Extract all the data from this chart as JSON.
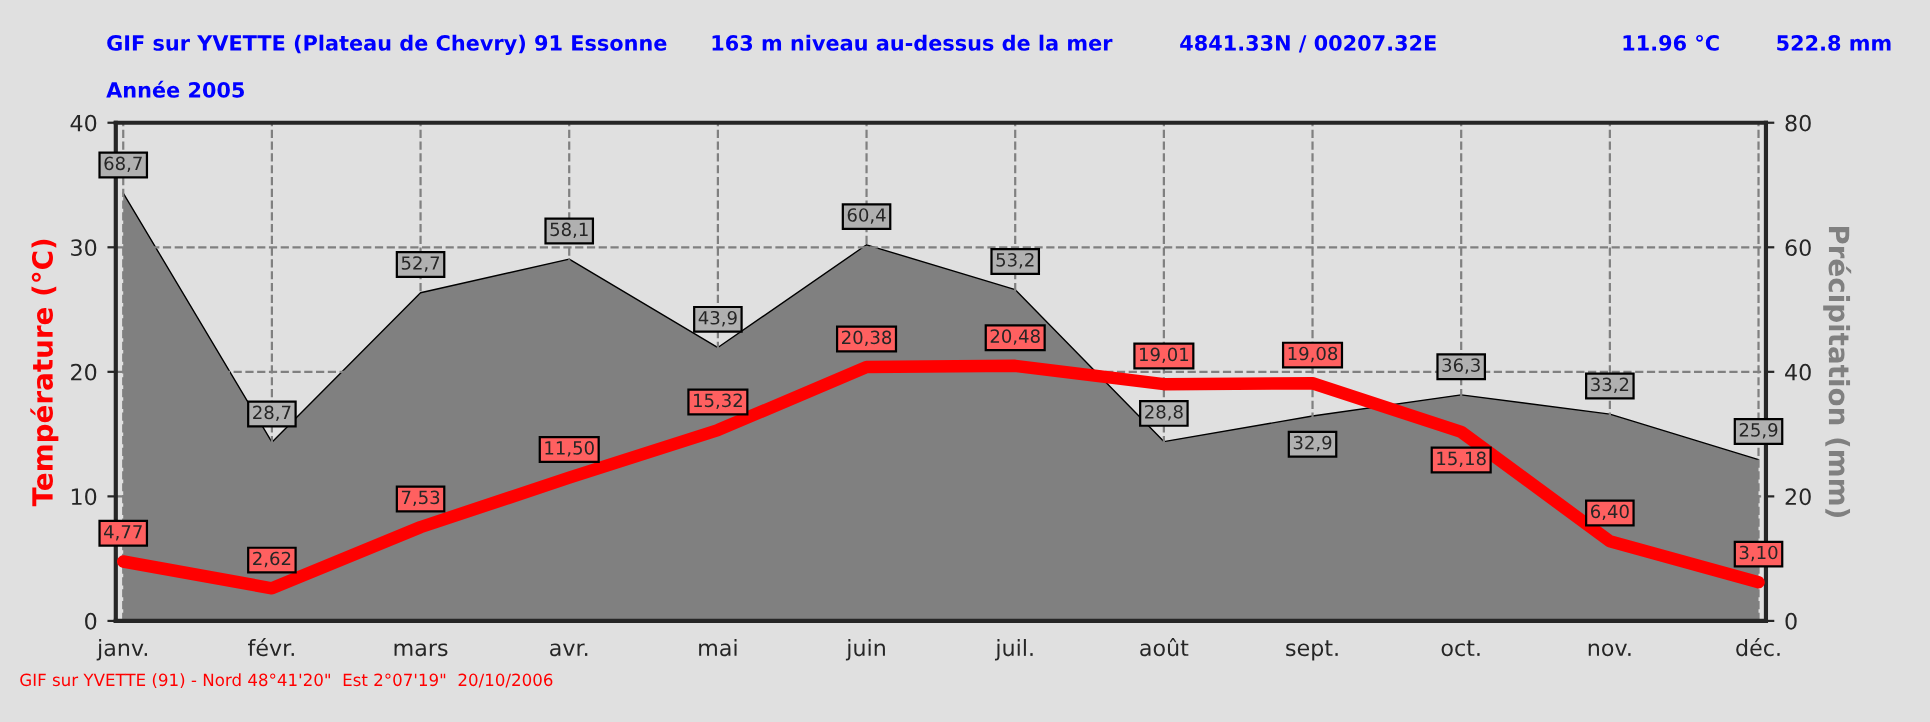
{
  "chart_data": {
    "type": "line",
    "title": "GIF sur YVETTE (Plateau de Chevry) 91 Essonne",
    "subtitle": "Année 2005",
    "annotations": [
      "163 m niveau au-dessus de la mer",
      "4841.33N / 00207.32E",
      "11.96 °C",
      "522.8 mm",
      "GIF sur YVETTE (91) - Nord 48°41'20\"  Est 2°07'19\"  20/10/2006"
    ],
    "categories": [
      "janv.",
      "févr.",
      "mars",
      "avr.",
      "mai",
      "juin",
      "juil.",
      "août",
      "sept.",
      "oct.",
      "nov.",
      "déc."
    ],
    "ylabel": "Température (°C)",
    "y2label": "Précipitation (mm)",
    "ylim": [
      0,
      40
    ],
    "yticks": [
      0,
      10,
      20,
      30,
      40
    ],
    "y2lim": [
      0,
      80
    ],
    "y2ticks": [
      0,
      20,
      40,
      60,
      80
    ],
    "grid": true,
    "legend": false,
    "series": [
      {
        "type": "area",
        "axis": "y2",
        "color": "#808080",
        "values": [
          68.7,
          28.7,
          52.7,
          58.1,
          43.9,
          60.4,
          53.2,
          28.8,
          32.9,
          36.3,
          33.2,
          25.9
        ],
        "value_labels": [
          "68,7",
          "28,7",
          "52,7",
          "58,1",
          "43,9",
          "60,4",
          "53,2",
          "28,8",
          "32,9",
          "36,3",
          "33,2",
          "25,9"
        ]
      },
      {
        "color": "#ff0000",
        "values": [
          4.77,
          2.62,
          7.53,
          11.5,
          15.32,
          20.38,
          20.48,
          19.01,
          19.08,
          15.18,
          6.4,
          3.1
        ],
        "value_labels": [
          "4,77",
          "2,62",
          "7,53",
          "11,50",
          "15,32",
          "20,38",
          "20,48",
          "19,01",
          "19,08",
          "15,18",
          "6,40",
          "3,10"
        ]
      }
    ]
  }
}
